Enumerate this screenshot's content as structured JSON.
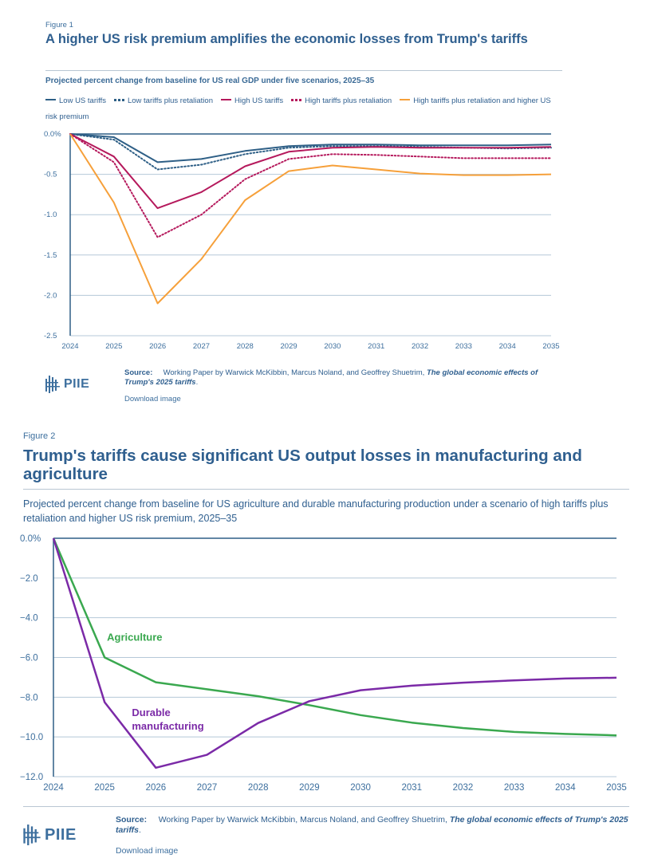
{
  "fig1": {
    "label": "Figure 1",
    "title": "A higher US risk premium amplifies the economic losses from Trump's tariffs",
    "subtitle": "Projected percent change from baseline for US real GDP under five scenarios, 2025–35",
    "source_label": "Source:",
    "source_text": "Working Paper by Warwick McKibbin, Marcus Noland, and Geoffrey Shuetrim,",
    "source_title": "The global economic effects of Trump's 2025 tariffs",
    "source_end": ".",
    "download": "Download image",
    "logo": "PIIE"
  },
  "fig2": {
    "label": "Figure 2",
    "title": "Trump's tariffs cause significant US output losses in manufacturing and agriculture",
    "subtitle": "Projected percent change from baseline for US agriculture and durable manufacturing production under a scenario of high tariffs plus retaliation and higher US risk premium, 2025–35",
    "source_label": "Source:",
    "source_text": "Working Paper by Warwick McKibbin, Marcus Noland, and Geoffrey Shuetrim,",
    "source_title": "The global economic effects of Trump's 2025 tariffs",
    "source_end": ".",
    "download": "Download image",
    "logo": "PIIE"
  },
  "chart_data": [
    {
      "type": "line",
      "title": "A higher US risk premium amplifies the economic losses from Trump's tariffs",
      "x": [
        "2024",
        "2025",
        "2026",
        "2027",
        "2028",
        "2029",
        "2030",
        "2031",
        "2032",
        "2033",
        "2034",
        "2035"
      ],
      "ylim": [
        -2.5,
        0
      ],
      "yticks": [
        0,
        -0.5,
        -1.0,
        -1.5,
        -2.0,
        -2.5
      ],
      "ytick_labels": [
        "0.0%",
        "-0.5",
        "-1.0",
        "-1.5",
        "-2.0",
        "-2.5"
      ],
      "legend_position": "top",
      "series": [
        {
          "name": "Low US tariffs",
          "color": "#2e5f86",
          "dash": "solid",
          "values": [
            0,
            -0.04,
            -0.35,
            -0.31,
            -0.21,
            -0.15,
            -0.13,
            -0.13,
            -0.14,
            -0.14,
            -0.14,
            -0.13
          ]
        },
        {
          "name": "Low tariffs plus retaliation",
          "color": "#2e5f86",
          "dash": "dotted",
          "values": [
            0,
            -0.07,
            -0.44,
            -0.38,
            -0.25,
            -0.17,
            -0.15,
            -0.15,
            -0.16,
            -0.17,
            -0.18,
            -0.17
          ]
        },
        {
          "name": "High US tariffs",
          "color": "#b5195c",
          "dash": "solid",
          "values": [
            0,
            -0.28,
            -0.92,
            -0.72,
            -0.4,
            -0.22,
            -0.17,
            -0.16,
            -0.17,
            -0.17,
            -0.17,
            -0.16
          ]
        },
        {
          "name": "High tariffs plus retaliation",
          "color": "#b5195c",
          "dash": "dotted",
          "values": [
            0,
            -0.35,
            -1.28,
            -1.0,
            -0.56,
            -0.31,
            -0.25,
            -0.26,
            -0.28,
            -0.3,
            -0.3,
            -0.3
          ]
        },
        {
          "name": "High tariffs plus retaliation and higher US risk premium",
          "color": "#f6a03a",
          "dash": "solid",
          "values": [
            0,
            -0.85,
            -2.1,
            -1.55,
            -0.82,
            -0.46,
            -0.39,
            -0.44,
            -0.49,
            -0.51,
            -0.51,
            -0.5
          ]
        }
      ]
    },
    {
      "type": "line",
      "title": "Trump's tariffs cause significant US output losses in manufacturing and agriculture",
      "x": [
        "2024",
        "2025",
        "2026",
        "2027",
        "2028",
        "2029",
        "2030",
        "2031",
        "2032",
        "2033",
        "2034",
        "2035"
      ],
      "ylim": [
        -12,
        0
      ],
      "yticks": [
        0,
        -2,
        -4,
        -6,
        -8,
        -10,
        -12
      ],
      "ytick_labels": [
        "0.0%",
        "−2.0",
        "−4.0",
        "−6.0",
        "−8.0",
        "−10.0",
        "−12.0"
      ],
      "series": [
        {
          "name": "Agriculture",
          "color": "#3aa84f",
          "label_lines": [
            "Agriculture"
          ],
          "values": [
            0,
            -6.0,
            -7.25,
            -7.6,
            -7.95,
            -8.4,
            -8.9,
            -9.28,
            -9.55,
            -9.75,
            -9.85,
            -9.92
          ]
        },
        {
          "name": "Durable manufacturing",
          "color": "#7b2aa7",
          "label_lines": [
            "Durable",
            "manufacturing"
          ],
          "values": [
            0,
            -8.25,
            -11.55,
            -10.9,
            -9.3,
            -8.2,
            -7.65,
            -7.42,
            -7.27,
            -7.15,
            -7.06,
            -7.02
          ]
        }
      ]
    }
  ]
}
